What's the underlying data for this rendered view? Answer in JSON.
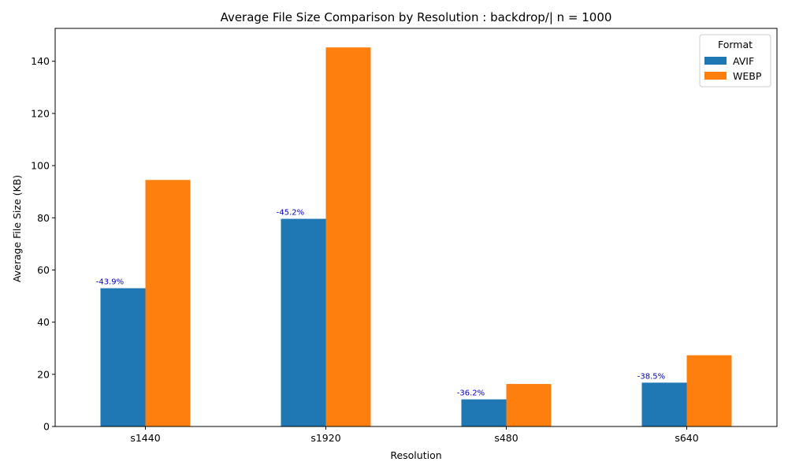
{
  "chart_data": {
    "type": "bar",
    "title": "Average File Size Comparison by Resolution : backdrop/| n = 1000",
    "xlabel": "Resolution",
    "ylabel": "Average File Size (KB)",
    "categories": [
      "s1440",
      "s1920",
      "s480",
      "s640"
    ],
    "series": [
      {
        "name": "AVIF",
        "color": "#1f77b4",
        "values": [
          53.0,
          79.6,
          10.4,
          16.8
        ]
      },
      {
        "name": "WEBP",
        "color": "#ff7f0e",
        "values": [
          94.5,
          145.3,
          16.3,
          27.3
        ]
      }
    ],
    "annotations": [
      "-43.9%",
      "-45.2%",
      "-36.2%",
      "-38.5%"
    ],
    "annotation_color": "#0000cc",
    "ylim": [
      0,
      152.6
    ],
    "yticks": [
      0,
      20,
      40,
      60,
      80,
      100,
      120,
      140
    ],
    "grid": false,
    "legend": {
      "title": "Format",
      "placement": "top-right"
    }
  }
}
